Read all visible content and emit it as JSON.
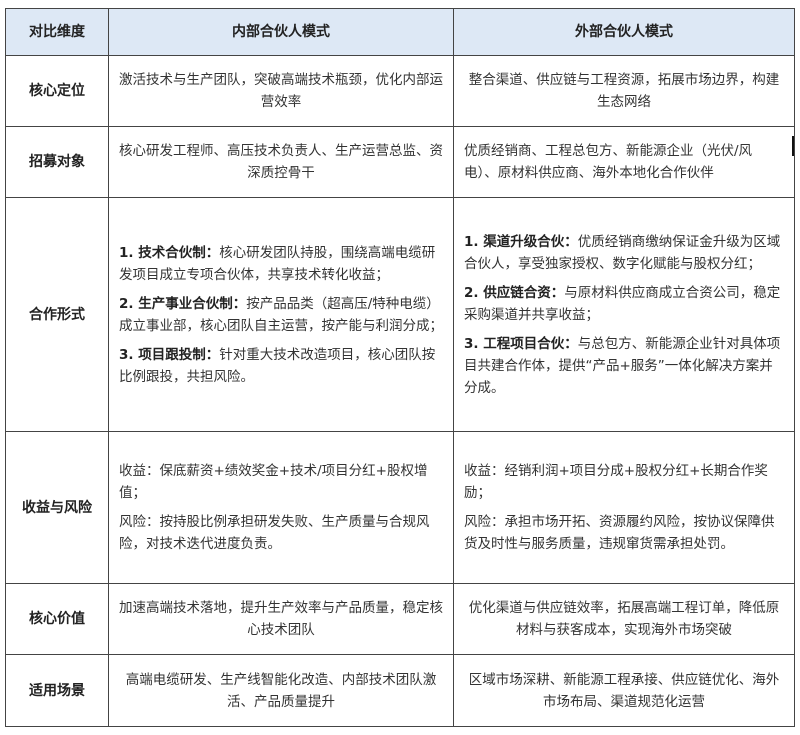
{
  "headers": [
    "对比维度",
    "内部合伙人模式",
    "外部合伙人模式"
  ],
  "header_bg": "#dde8f5",
  "rows": [
    {
      "dim": "核心定位",
      "internal": "激活技术与生产团队，突破高端技术瓶颈，优化内部运营效率",
      "external": "整合渠道、供应链与工程资源，拓展市场边界，构建生态网络"
    },
    {
      "dim": "招募对象",
      "internal": "核心研发工程师、高压技术负责人、生产运营总监、资深质控骨干",
      "external": "优质经销商、工程总包方、新能源企业（光伏/风电）、原材料供应商、海外本地化合作伙伴"
    },
    {
      "dim": "合作形式",
      "internal": [
        {
          "bold": "1. 技术合伙制：",
          "text": "核心研发团队持股，围绕高端电缆研发项目成立专项合伙体，共享技术转化收益；"
        },
        {
          "bold": "2. 生产事业合伙制：",
          "text": "按产品品类（超高压/特种电缆）成立事业部，核心团队自主运营，按产能与利润分成；"
        },
        {
          "bold": "3. 项目跟投制：",
          "text": "针对重大技术改造项目，核心团队按比例跟投，共担风险。"
        }
      ],
      "external": [
        {
          "bold": "1. 渠道升级合伙：",
          "text": "优质经销商缴纳保证金升级为区域合伙人，享受独家授权、数字化赋能与股权分红；"
        },
        {
          "bold": "2. 供应链合资：",
          "text": "与原材料供应商成立合资公司，稳定采购渠道并共享收益；"
        },
        {
          "bold": "3. 工程项目合伙：",
          "text": "与总包方、新能源企业针对具体项目共建合作体，提供“产品+服务”一体化解决方案并分成。"
        }
      ]
    },
    {
      "dim": "收益与风险",
      "internal": [
        "收益：保底薪资+绩效奖金+技术/项目分红+股权增值；",
        "风险：按持股比例承担研发失败、生产质量与合规风险，对技术迭代进度负责。"
      ],
      "external": [
        "收益：经销利润+项目分成+股权分红+长期合作奖励；",
        "风险：承担市场开拓、资源履约风险，按协议保障供货及时性与服务质量，违规窜货需承担处罚。"
      ]
    },
    {
      "dim": "核心价值",
      "internal": "加速高端技术落地，提升生产效率与产品质量，稳定核心技术团队",
      "external": "优化渠道与供应链效率，拓展高端工程订单，降低原材料与获客成本，实现海外市场突破"
    },
    {
      "dim": "适用场景",
      "internal": "高端电缆研发、生产线智能化改造、内部技术团队激活、产品质量提升",
      "external": "区域市场深耕、新能源工程承接、供应链优化、海外市场布局、渠道规范化运营"
    }
  ]
}
